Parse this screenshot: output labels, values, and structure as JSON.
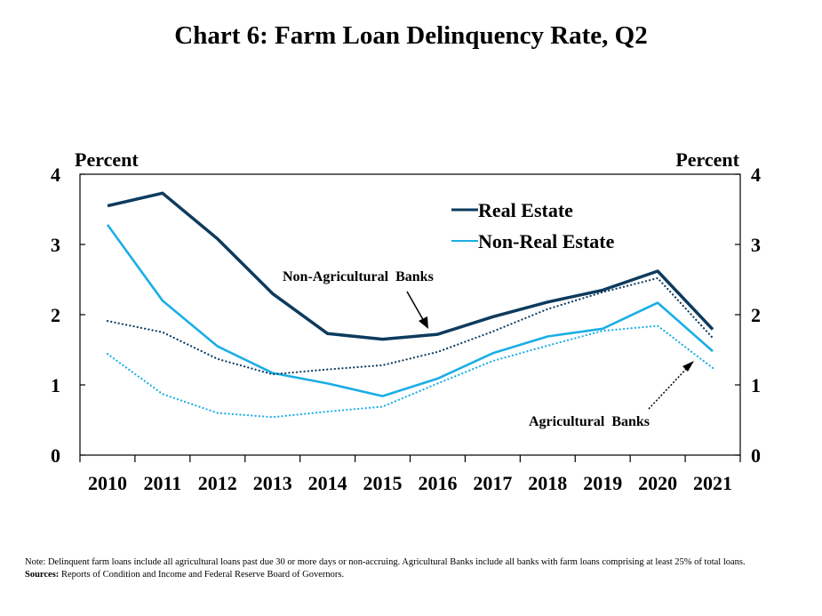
{
  "title": "Chart 6: Farm Loan Delinquency Rate, Q2",
  "note": "Note: Delinquent farm loans include all agricultural loans past due 30 or more days or non-accruing. Agricultural Banks include all banks with farm loans comprising at least 25% of total loans.",
  "sources_label": "Sources:",
  "sources_text": "Reports of Condition and Income and Federal Reserve Board of Governors.",
  "colors": {
    "real_estate": "#0d3b5e",
    "non_real_estate": "#1aaee6"
  },
  "chart_data": {
    "type": "line",
    "x": [
      "2010",
      "2011",
      "2012",
      "2013",
      "2014",
      "2015",
      "2016",
      "2017",
      "2018",
      "2019",
      "2020",
      "2021"
    ],
    "ylabel_left": "Percent",
    "ylabel_right": "Percent",
    "ylim": [
      0,
      4
    ],
    "yticks": [
      "0",
      "1",
      "2",
      "3",
      "4"
    ],
    "legend": [
      "Real Estate",
      "Non-Real Estate"
    ],
    "legend_position": "top-right",
    "annotations": [
      "Non-Agricultural  Banks",
      "Agricultural  Banks"
    ],
    "series": [
      {
        "name": "Real Estate",
        "group": "Non-Agricultural  Banks",
        "style": "solid",
        "color": "#0d3b5e",
        "values": [
          3.55,
          3.73,
          3.08,
          2.3,
          1.73,
          1.65,
          1.72,
          1.97,
          2.18,
          2.35,
          2.62,
          1.79
        ]
      },
      {
        "name": "Non-Real Estate",
        "group": "Non-Agricultural  Banks",
        "style": "solid",
        "color": "#1aaee6",
        "values": [
          3.28,
          2.2,
          1.55,
          1.17,
          1.02,
          0.84,
          1.09,
          1.45,
          1.69,
          1.8,
          2.17,
          1.48
        ]
      },
      {
        "name": "Real Estate",
        "group": "Agricultural  Banks",
        "style": "dotted",
        "color": "#0d3b5e",
        "values": [
          1.91,
          1.75,
          1.37,
          1.15,
          1.22,
          1.28,
          1.47,
          1.76,
          2.08,
          2.32,
          2.52,
          1.67
        ]
      },
      {
        "name": "Non-Real Estate",
        "group": "Agricultural  Banks",
        "style": "dotted",
        "color": "#1aaee6",
        "values": [
          1.44,
          0.87,
          0.6,
          0.54,
          0.62,
          0.69,
          1.02,
          1.34,
          1.56,
          1.77,
          1.84,
          1.24
        ]
      }
    ]
  }
}
